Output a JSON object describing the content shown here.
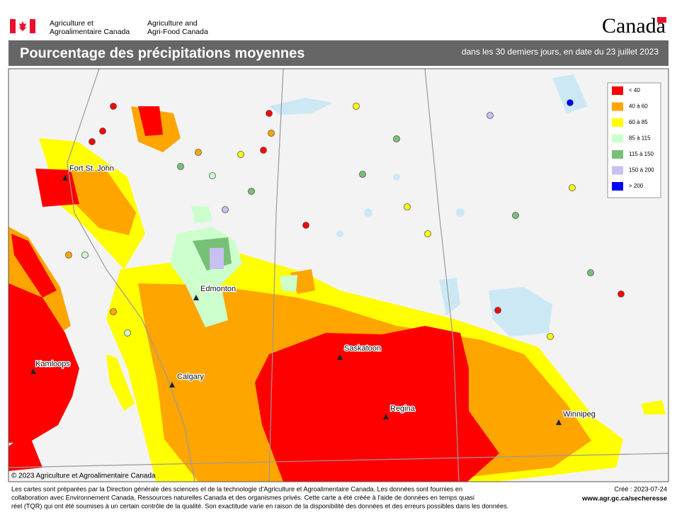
{
  "header": {
    "agency_fr": [
      "Agriculture et",
      "Agroalimentaire Canada"
    ],
    "agency_en": [
      "Agriculture and",
      "Agri-Food Canada"
    ],
    "wordmark": "Canada"
  },
  "title": {
    "text": "Pourcentage des précipitations moyennes",
    "subtitle": "dans les 30 derniers jours, en date du 23 juillet 2023"
  },
  "legend": [
    {
      "label": "< 40",
      "color": "#ff0000"
    },
    {
      "label": "40 à 60",
      "color": "#ffa500"
    },
    {
      "label": "60 à 85",
      "color": "#ffff00"
    },
    {
      "label": "85 à 115",
      "color": "#ccffcc"
    },
    {
      "label": "115 à 150",
      "color": "#77c077"
    },
    {
      "label": "150 à 200",
      "color": "#c8c0f0"
    },
    {
      "label": "> 200",
      "color": "#0000ff"
    }
  ],
  "cities": [
    "Fort St. John",
    "Edmonton",
    "Kamloops",
    "Calgary",
    "Saskatoon",
    "Regina",
    "Winnipeg"
  ],
  "copyright": "© 2023 Agriculture et Agroalimentaire Canada",
  "footer": {
    "lines": [
      "Les cartes sont préparées par la Direction générale des sciences et de la technologie d'Agriculture et Agroalimentaire Canada. Les données sont fournies en",
      "collaboration avec Environnement Canada, Ressources naturelles Canada et des organismes privés. Cette carte a été créée à l'aide de données en temps quasi",
      "réel (TQR) qui ont été soumises à un certain contrôle de la qualité. Son exactitude varie en raison de la disponibilité des données et des erreurs possibles dans les données."
    ],
    "created": "Créé : 2023-07-24",
    "url": "www.agr.gc.ca/secheresse"
  }
}
